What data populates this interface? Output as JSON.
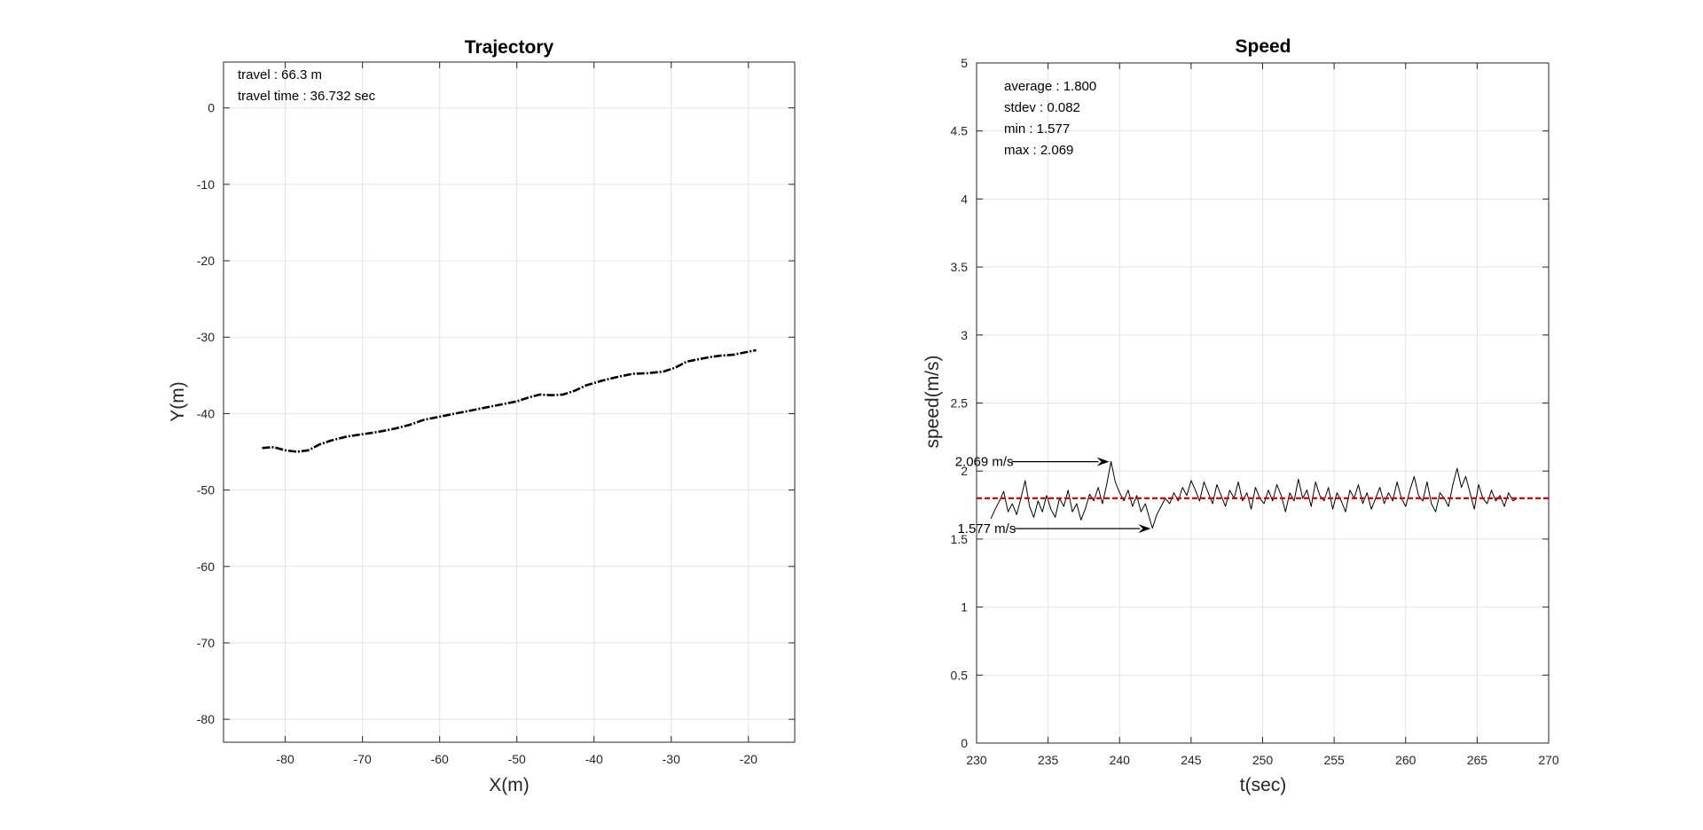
{
  "chart_data": [
    {
      "type": "line",
      "title": "Trajectory",
      "xlabel": "X(m)",
      "ylabel": "Y(m)",
      "xlim": [
        -88,
        -14
      ],
      "ylim": [
        -83,
        6
      ],
      "xticks": [
        -80,
        -70,
        -60,
        -50,
        -40,
        -30,
        -20
      ],
      "yticks": [
        0,
        -10,
        -20,
        -30,
        -40,
        -50,
        -60,
        -70,
        -80
      ],
      "grid": true,
      "annotations": [
        "travel : 66.3 m",
        "travel time : 36.732 sec"
      ],
      "series": [
        {
          "style": "dash-dot",
          "color": "#000000",
          "x": [
            -83,
            -81.5,
            -80,
            -78.5,
            -77,
            -75.5,
            -74,
            -72,
            -70,
            -68,
            -66,
            -64,
            -62,
            -60,
            -58,
            -56,
            -54,
            -52,
            -50,
            -48.5,
            -47,
            -45.5,
            -44,
            -42.5,
            -41,
            -39,
            -37,
            -35,
            -33,
            -31,
            -29.5,
            -28,
            -26.5,
            -25,
            -23.5,
            -22,
            -20.5,
            -19
          ],
          "y": [
            -44.5,
            -44.4,
            -44.8,
            -45.0,
            -44.8,
            -44.0,
            -43.5,
            -43.0,
            -42.7,
            -42.4,
            -42.0,
            -41.5,
            -40.8,
            -40.4,
            -40.0,
            -39.6,
            -39.2,
            -38.8,
            -38.4,
            -37.9,
            -37.5,
            -37.6,
            -37.5,
            -37.0,
            -36.3,
            -35.7,
            -35.2,
            -34.8,
            -34.7,
            -34.5,
            -34.0,
            -33.2,
            -32.9,
            -32.6,
            -32.4,
            -32.3,
            -32.0,
            -31.7
          ]
        }
      ]
    },
    {
      "type": "line",
      "title": "Speed",
      "xlabel": "t(sec)",
      "ylabel": "speed(m/s)",
      "xlim": [
        230,
        270
      ],
      "ylim": [
        0,
        5
      ],
      "xticks": [
        230,
        235,
        240,
        245,
        250,
        255,
        260,
        265,
        270
      ],
      "yticks": [
        0,
        0.5,
        1,
        1.5,
        2,
        2.5,
        3,
        3.5,
        4,
        4.5,
        5
      ],
      "grid": true,
      "statistics": [
        "average : 1.800",
        "stdev : 0.082",
        "min : 1.577",
        "max : 2.069"
      ],
      "callouts": [
        {
          "text": "2.069 m/s",
          "x": 239.4,
          "y": 2.069
        },
        {
          "text": "1.577 m/s",
          "x": 242.3,
          "y": 1.577
        }
      ],
      "average_line": {
        "y": 1.8,
        "color": "#e60000",
        "style": "dashed"
      },
      "series": [
        {
          "color": "#000000",
          "x": [
            231.0,
            231.3,
            231.6,
            231.9,
            232.2,
            232.5,
            232.8,
            233.1,
            233.4,
            233.7,
            234.0,
            234.3,
            234.6,
            234.9,
            235.2,
            235.5,
            235.8,
            236.1,
            236.4,
            236.7,
            237.0,
            237.3,
            237.6,
            237.9,
            238.2,
            238.5,
            238.8,
            239.1,
            239.4,
            239.7,
            240.0,
            240.3,
            240.6,
            240.9,
            241.2,
            241.5,
            241.8,
            242.1,
            242.3,
            242.6,
            242.9,
            243.2,
            243.5,
            243.8,
            244.1,
            244.4,
            244.7,
            245.0,
            245.3,
            245.6,
            245.9,
            246.2,
            246.5,
            246.8,
            247.1,
            247.4,
            247.7,
            248.0,
            248.3,
            248.6,
            248.9,
            249.2,
            249.5,
            249.8,
            250.1,
            250.4,
            250.7,
            251.0,
            251.3,
            251.6,
            251.9,
            252.2,
            252.5,
            252.8,
            253.1,
            253.4,
            253.7,
            254.0,
            254.3,
            254.6,
            254.9,
            255.2,
            255.5,
            255.8,
            256.1,
            256.4,
            256.7,
            257.0,
            257.3,
            257.6,
            257.9,
            258.2,
            258.5,
            258.8,
            259.1,
            259.4,
            259.7,
            260.0,
            260.3,
            260.6,
            260.9,
            261.2,
            261.5,
            261.8,
            262.1,
            262.4,
            262.7,
            263.0,
            263.3,
            263.6,
            263.9,
            264.2,
            264.5,
            264.8,
            265.1,
            265.4,
            265.7,
            266.0,
            266.3,
            266.6,
            266.9,
            267.2,
            267.5,
            267.8
          ],
          "y": [
            1.65,
            1.72,
            1.78,
            1.85,
            1.7,
            1.76,
            1.68,
            1.8,
            1.93,
            1.74,
            1.66,
            1.78,
            1.7,
            1.82,
            1.72,
            1.66,
            1.8,
            1.74,
            1.86,
            1.7,
            1.76,
            1.64,
            1.72,
            1.83,
            1.78,
            1.88,
            1.76,
            1.9,
            2.07,
            1.92,
            1.84,
            1.78,
            1.86,
            1.74,
            1.82,
            1.7,
            1.76,
            1.65,
            1.58,
            1.68,
            1.74,
            1.8,
            1.76,
            1.84,
            1.78,
            1.88,
            1.82,
            1.93,
            1.86,
            1.78,
            1.92,
            1.84,
            1.76,
            1.9,
            1.82,
            1.74,
            1.86,
            1.8,
            1.92,
            1.78,
            1.84,
            1.72,
            1.88,
            1.8,
            1.76,
            1.86,
            1.78,
            1.9,
            1.82,
            1.7,
            1.84,
            1.78,
            1.94,
            1.8,
            1.86,
            1.74,
            1.92,
            1.82,
            1.78,
            1.88,
            1.72,
            1.84,
            1.78,
            1.7,
            1.86,
            1.8,
            1.9,
            1.76,
            1.84,
            1.72,
            1.8,
            1.88,
            1.76,
            1.84,
            1.78,
            1.92,
            1.8,
            1.74,
            1.86,
            1.96,
            1.82,
            1.78,
            1.92,
            1.76,
            1.7,
            1.84,
            1.8,
            1.74,
            1.9,
            2.02,
            1.88,
            1.96,
            1.84,
            1.72,
            1.9,
            1.8,
            1.76,
            1.86,
            1.78,
            1.82,
            1.74,
            1.84,
            1.78,
            1.8
          ]
        }
      ]
    }
  ]
}
